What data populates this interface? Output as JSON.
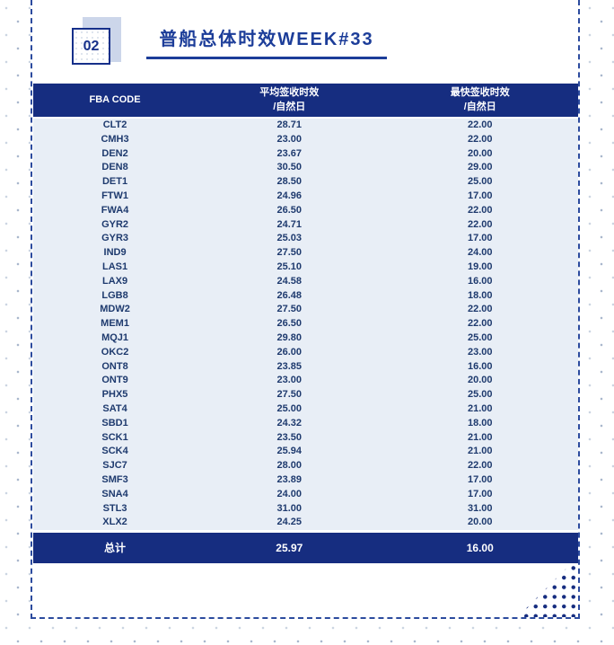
{
  "page": {
    "number_label": "02",
    "title": "普船总体时效WEEK#33"
  },
  "table": {
    "columns": [
      {
        "label": "FBA CODE",
        "sub": ""
      },
      {
        "label": "平均签收时效",
        "sub": "/自然日"
      },
      {
        "label": "最快签收时效",
        "sub": "/自然日"
      }
    ],
    "rows": [
      [
        "CLT2",
        "28.71",
        "22.00"
      ],
      [
        "CMH3",
        "23.00",
        "22.00"
      ],
      [
        "DEN2",
        "23.67",
        "20.00"
      ],
      [
        "DEN8",
        "30.50",
        "29.00"
      ],
      [
        "DET1",
        "28.50",
        "25.00"
      ],
      [
        "FTW1",
        "24.96",
        "17.00"
      ],
      [
        "FWA4",
        "26.50",
        "22.00"
      ],
      [
        "GYR2",
        "24.71",
        "22.00"
      ],
      [
        "GYR3",
        "25.03",
        "17.00"
      ],
      [
        "IND9",
        "27.50",
        "24.00"
      ],
      [
        "LAS1",
        "25.10",
        "19.00"
      ],
      [
        "LAX9",
        "24.58",
        "16.00"
      ],
      [
        "LGB8",
        "26.48",
        "18.00"
      ],
      [
        "MDW2",
        "27.50",
        "22.00"
      ],
      [
        "MEM1",
        "26.50",
        "22.00"
      ],
      [
        "MQJ1",
        "29.80",
        "25.00"
      ],
      [
        "OKC2",
        "26.00",
        "23.00"
      ],
      [
        "ONT8",
        "23.85",
        "16.00"
      ],
      [
        "ONT9",
        "23.00",
        "20.00"
      ],
      [
        "PHX5",
        "27.50",
        "25.00"
      ],
      [
        "SAT4",
        "25.00",
        "21.00"
      ],
      [
        "SBD1",
        "24.32",
        "18.00"
      ],
      [
        "SCK1",
        "23.50",
        "21.00"
      ],
      [
        "SCK4",
        "25.94",
        "21.00"
      ],
      [
        "SJC7",
        "28.00",
        "22.00"
      ],
      [
        "SMF3",
        "23.89",
        "17.00"
      ],
      [
        "SNA4",
        "24.00",
        "17.00"
      ],
      [
        "STL3",
        "31.00",
        "31.00"
      ],
      [
        "XLX2",
        "24.25",
        "20.00"
      ]
    ],
    "footer": [
      "总计",
      "25.97",
      "16.00"
    ]
  },
  "colors": {
    "navy": "#162d80",
    "title_blue": "#1c3d99",
    "row_bg": "#e8eef6",
    "row_text": "#1e3a6e",
    "dashed_border": "#2c4b9e",
    "badge_shadow": "#ccd6ea"
  }
}
